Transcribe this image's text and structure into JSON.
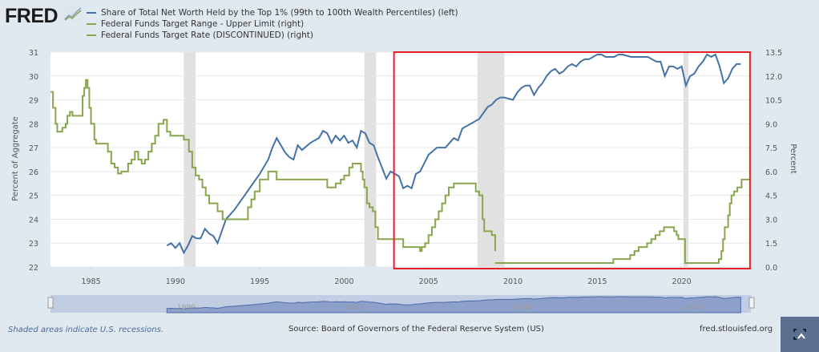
{
  "header": {
    "logo_text": "FRED",
    "logo_icon": "line-chart-icon",
    "legend": [
      {
        "label": "Share of Total Net Worth Held by the Top 1% (99th to 100th Wealth Percentiles) (left)",
        "color": "#4572a7"
      },
      {
        "label": "Federal Funds Target Range - Upper Limit (right)",
        "color": "#89a54e"
      },
      {
        "label": "Federal Funds Target Rate (DISCONTINUED) (right)",
        "color": "#89a54e"
      }
    ]
  },
  "footer": {
    "recession_note": "Shaded areas indicate U.S. recessions.",
    "source": "Source: Board of Governors of the Federal Reserve System (US)",
    "site": "fred.stlouisfed.org",
    "fullscreen_icon": "fullscreen-icon"
  },
  "navigator": {
    "labels": [
      "1990",
      "2000",
      "2010",
      "2020"
    ]
  },
  "highlight_box": {
    "color": "#e8202a",
    "x_start": 2003.0,
    "x_end": 2024.0
  },
  "chart_data": {
    "type": "line",
    "title": "",
    "xlabel": "",
    "ylabel_left": "Percent of Aggregate",
    "ylabel_right": "Percent",
    "xlim": [
      1982.6,
      2024.1
    ],
    "ylim_left": [
      22,
      31
    ],
    "ylim_right": [
      0,
      13.5
    ],
    "x_ticks": [
      "1985",
      "1990",
      "1995",
      "2000",
      "2005",
      "2010",
      "2015",
      "2020"
    ],
    "y_ticks_left": [
      "22",
      "23",
      "24",
      "25",
      "26",
      "27",
      "28",
      "29",
      "30",
      "31"
    ],
    "y_ticks_right": [
      "0.0",
      "1.5",
      "3.0",
      "4.5",
      "6.0",
      "7.5",
      "9.0",
      "10.5",
      "12.0",
      "13.5"
    ],
    "grid": true,
    "recessions": [
      [
        1990.5,
        1991.2
      ],
      [
        2001.2,
        2001.9
      ],
      [
        2007.9,
        2009.5
      ],
      [
        2020.1,
        2020.4
      ]
    ],
    "series": [
      {
        "name": "Share of Total Net Worth Held by the Top 1% (99th to 100th Wealth Percentiles)",
        "axis": "left",
        "color": "#4572a7",
        "step": false,
        "x": [
          1989.5,
          1989.75,
          1990.0,
          1990.25,
          1990.5,
          1990.75,
          1991.0,
          1991.25,
          1991.5,
          1991.75,
          1992.0,
          1992.25,
          1992.5,
          1992.75,
          1993.0,
          1993.5,
          1994.0,
          1994.5,
          1995.0,
          1995.5,
          1995.75,
          1996.0,
          1996.5,
          1996.75,
          1997.0,
          1997.25,
          1997.5,
          1998.0,
          1998.25,
          1998.5,
          1998.75,
          1999.0,
          1999.25,
          1999.5,
          1999.75,
          2000.0,
          2000.25,
          2000.5,
          2000.75,
          2001.0,
          2001.25,
          2001.5,
          2001.75,
          2002.0,
          2002.5,
          2002.75,
          2003.0,
          2003.25,
          2003.5,
          2003.75,
          2004.0,
          2004.25,
          2004.5,
          2005.0,
          2005.5,
          2005.75,
          2006.0,
          2006.25,
          2006.5,
          2006.75,
          2007.0,
          2007.25,
          2007.5,
          2008.0,
          2008.5,
          2008.75,
          2009.0,
          2009.25,
          2009.5,
          2010.0,
          2010.25,
          2010.5,
          2010.75,
          2011.0,
          2011.25,
          2011.5,
          2011.75,
          2012.0,
          2012.25,
          2012.5,
          2012.75,
          2013.0,
          2013.25,
          2013.5,
          2013.75,
          2014.0,
          2014.25,
          2014.5,
          2014.75,
          2015.0,
          2015.25,
          2015.5,
          2015.75,
          2016.0,
          2016.25,
          2016.5,
          2017.0,
          2017.5,
          2018.0,
          2018.25,
          2018.5,
          2018.75,
          2019.0,
          2019.25,
          2019.5,
          2019.75,
          2020.0,
          2020.25,
          2020.5,
          2020.75,
          2021.0,
          2021.25,
          2021.5,
          2021.75,
          2022.0,
          2022.25,
          2022.5,
          2022.75,
          2023.0,
          2023.25,
          2023.5
        ],
        "values": [
          22.9,
          23.0,
          22.8,
          23.0,
          22.6,
          22.9,
          23.3,
          23.2,
          23.2,
          23.6,
          23.4,
          23.3,
          23.0,
          23.5,
          24.0,
          24.4,
          24.9,
          25.4,
          25.9,
          26.5,
          27.0,
          27.4,
          26.8,
          26.6,
          26.5,
          27.1,
          26.9,
          27.2,
          27.3,
          27.4,
          27.7,
          27.6,
          27.2,
          27.5,
          27.3,
          27.5,
          27.2,
          27.3,
          27.0,
          27.7,
          27.6,
          27.2,
          27.1,
          26.6,
          25.7,
          26.0,
          25.9,
          25.8,
          25.3,
          25.4,
          25.3,
          25.9,
          26.0,
          26.7,
          27.0,
          27.0,
          27.0,
          27.2,
          27.4,
          27.3,
          27.8,
          27.9,
          28.0,
          28.2,
          28.7,
          28.8,
          29.0,
          29.1,
          29.1,
          29.0,
          29.3,
          29.5,
          29.6,
          29.6,
          29.2,
          29.5,
          29.7,
          30.0,
          30.2,
          30.3,
          30.1,
          30.2,
          30.4,
          30.5,
          30.4,
          30.6,
          30.7,
          30.7,
          30.8,
          30.9,
          30.9,
          30.8,
          30.8,
          30.8,
          30.9,
          30.9,
          30.8,
          30.8,
          30.8,
          30.7,
          30.6,
          30.6,
          30.0,
          30.4,
          30.4,
          30.3,
          30.4,
          29.6,
          30.0,
          30.1,
          30.4,
          30.6,
          30.9,
          30.8,
          30.9,
          30.4,
          29.7,
          29.9,
          30.3,
          30.5,
          30.5
        ],
        "data_note": "Quarterly values estimated from chart; series begins 1989Q3"
      },
      {
        "name": "Federal Funds Target Rate (DISCONTINUED)",
        "axis": "right",
        "color": "#89a54e",
        "step": true,
        "x": [
          1982.6,
          1982.75,
          1982.9,
          1983.0,
          1983.3,
          1983.5,
          1983.6,
          1983.75,
          1983.9,
          1984.0,
          1984.5,
          1984.6,
          1984.7,
          1984.8,
          1984.9,
          1985.0,
          1985.2,
          1985.3,
          1985.5,
          1985.7,
          1986.0,
          1986.2,
          1986.4,
          1986.6,
          1986.8,
          1987.0,
          1987.2,
          1987.4,
          1987.6,
          1987.8,
          1988.0,
          1988.2,
          1988.4,
          1988.6,
          1988.8,
          1989.0,
          1989.3,
          1989.5,
          1989.7,
          1990.0,
          1990.5,
          1990.8,
          1991.0,
          1991.2,
          1991.4,
          1991.6,
          1991.8,
          1992.0,
          1992.5,
          1992.8,
          1994.0,
          1994.3,
          1994.5,
          1994.7,
          1995.0,
          1995.5,
          1996.0,
          1998.8,
          1999.0,
          1999.5,
          1999.8,
          2000.0,
          2000.3,
          2000.5,
          2001.0,
          2001.1,
          2001.2,
          2001.35,
          2001.5,
          2001.7,
          2001.85,
          2002.0,
          2002.9,
          2003.5,
          2004.5,
          2004.6,
          2004.8,
          2005.0,
          2005.2,
          2005.4,
          2005.6,
          2005.8,
          2006.0,
          2006.2,
          2006.5,
          2007.7,
          2007.8,
          2008.0,
          2008.2,
          2008.3,
          2008.75,
          2008.95
        ],
        "values": [
          11.0,
          10.0,
          9.0,
          8.5,
          8.75,
          9.0,
          9.5,
          9.75,
          9.5,
          9.5,
          10.75,
          11.25,
          11.75,
          11.25,
          10.0,
          9.0,
          8.0,
          7.75,
          7.75,
          7.75,
          7.25,
          6.5,
          6.25,
          5.875,
          6.0,
          6.0,
          6.5,
          6.75,
          7.25,
          6.75,
          6.5,
          6.75,
          7.25,
          7.75,
          8.25,
          9.0,
          9.25,
          8.5,
          8.25,
          8.25,
          8.0,
          7.25,
          6.25,
          5.75,
          5.5,
          5.0,
          4.5,
          4.0,
          3.5,
          3.0,
          3.0,
          3.75,
          4.25,
          4.75,
          5.5,
          6.0,
          5.5,
          5.5,
          5.0,
          5.25,
          5.5,
          5.75,
          6.25,
          6.5,
          6.0,
          5.5,
          5.0,
          4.0,
          3.75,
          3.5,
          2.5,
          1.75,
          1.75,
          1.25,
          1.0,
          1.25,
          1.5,
          2.0,
          2.5,
          3.0,
          3.5,
          4.0,
          4.5,
          5.0,
          5.25,
          5.25,
          4.75,
          4.5,
          3.0,
          2.25,
          2.0,
          1.0
        ],
        "data_note": "Step series ending late 2008"
      },
      {
        "name": "Federal Funds Target Range - Upper Limit",
        "axis": "right",
        "color": "#89a54e",
        "step": true,
        "x": [
          2008.95,
          2015.95,
          2016.95,
          2017.2,
          2017.45,
          2017.95,
          2018.2,
          2018.45,
          2018.7,
          2018.95,
          2019.55,
          2019.7,
          2019.8,
          2020.2,
          2022.2,
          2022.35,
          2022.45,
          2022.55,
          2022.75,
          2022.85,
          2022.95,
          2023.1,
          2023.3,
          2023.55,
          2024.1
        ],
        "values": [
          0.25,
          0.5,
          0.75,
          1.0,
          1.25,
          1.5,
          1.75,
          2.0,
          2.25,
          2.5,
          2.25,
          2.0,
          1.75,
          0.25,
          0.5,
          1.0,
          1.75,
          2.5,
          3.25,
          4.0,
          4.5,
          4.75,
          5.0,
          5.5,
          5.5
        ],
        "data_note": "Step series beginning Dec 2008"
      }
    ]
  }
}
